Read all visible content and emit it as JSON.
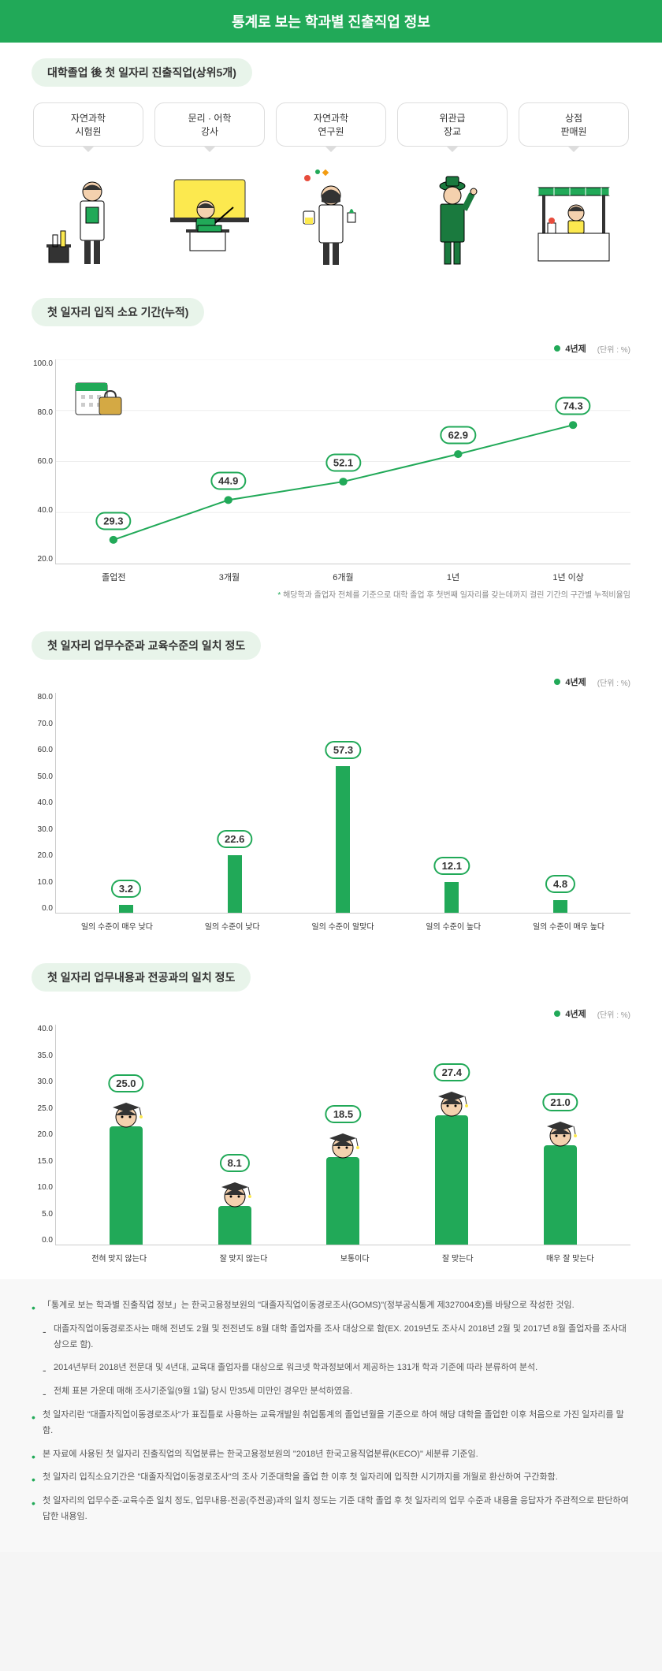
{
  "title": "통계로 보는 학과별 진출직업 정보",
  "section1": {
    "header": "대학졸업 後 첫 일자리 진출직업(상위5개)",
    "jobs": [
      {
        "label": "자연과학\n시험원"
      },
      {
        "label": "문리 · 어학\n강사"
      },
      {
        "label": "자연과학\n연구원"
      },
      {
        "label": "위관급\n장교"
      },
      {
        "label": "상점\n판매원"
      }
    ]
  },
  "section2": {
    "header": "첫 일자리 입직 소요 기간(누적)",
    "legend": "4년제",
    "unit": "(단위 : %)",
    "y_ticks": [
      "100.0",
      "80.0",
      "60.0",
      "40.0",
      "20.0"
    ],
    "y_min": 20,
    "y_max": 100,
    "x_labels": [
      "졸업전",
      "3개월",
      "6개월",
      "1년",
      "1년 이상"
    ],
    "values": [
      29.3,
      44.9,
      52.1,
      62.9,
      74.3
    ],
    "colors": {
      "line": "#21a958",
      "label_border": "#21a958"
    },
    "note": "해당학과 졸업자 전체를 기준으로 대학 졸업 후 첫번째 일자리를 갖는데까지 걸린 기간의 구간별 누적비율임"
  },
  "section3": {
    "header": "첫 일자리 업무수준과 교육수준의 일치 정도",
    "legend": "4년제",
    "unit": "(단위 : %)",
    "y_ticks": [
      "80.0",
      "70.0",
      "60.0",
      "50.0",
      "40.0",
      "30.0",
      "20.0",
      "10.0",
      "0.0"
    ],
    "y_max": 80,
    "x_labels": [
      "일의 수준이 매우 낮다",
      "일의 수준이 낮다",
      "일의 수준이 알맞다",
      "일의 수준이 높다",
      "일의 수준이 매우 높다"
    ],
    "values": [
      3.2,
      22.6,
      57.3,
      12.1,
      4.8
    ],
    "bar_color": "#21a958"
  },
  "section4": {
    "header": "첫 일자리 업무내용과 전공과의 일치 정도",
    "legend": "4년제",
    "unit": "(단위 : %)",
    "y_ticks": [
      "40.0",
      "35.0",
      "30.0",
      "25.0",
      "20.0",
      "15.0",
      "10.0",
      "5.0",
      "0.0"
    ],
    "y_max": 40,
    "x_labels": [
      "전혀 맞지 않는다",
      "잘 맞지 않는다",
      "보통이다",
      "잘 맞는다",
      "매우 잘 맞는다"
    ],
    "values": [
      25.0,
      8.1,
      18.5,
      27.4,
      21.0
    ],
    "bar_color": "#21a958"
  },
  "notes": {
    "items": [
      "「통계로 보는 학과별 진출직업 정보」는 한국고용정보원의 \"대졸자직업이동경로조사(GOMS)\"(정부공식통계 제327004호)를 바탕으로 작성한 것임.",
      "대졸자직업이동경로조사는 매해 전년도 2월 및 전전년도 8월 대학 졸업자를 조사 대상으로 함(EX. 2019년도 조사시 2018년 2월 및 2017년 8월 졸업자를 조사대상으로 함).",
      "2014년부터 2018년 전문대 및 4년대, 교육대 졸업자를 대상으로 워크넷 학과정보에서 제공하는 131개 학과 기준에 따라 분류하여 분석.",
      "전체 표본 가운데 매해 조사기준일(9월 1일) 당시 만35세 미만인 경우만 분석하였음.",
      "첫 일자리란 \"대졸자직업이동경로조사\"가 표집틀로 사용하는 교육개발원 취업통계의 졸업년월을 기준으로 하여 해당 대학을 졸업한 이후 처음으로 가진 일자리를 말함.",
      "본 자료에 사용된 첫 일자리 진출직업의 직업분류는 한국고용정보원의 \"2018년 한국고용직업분류(KECO)\" 세분류 기준임.",
      "첫 일자리 입직소요기간은 \"대졸자직업이동경로조사\"의 조사 기준대학을 졸업 한 이후 첫 일자리에 입직한 시기까지를 개월로 환산하여 구간화함.",
      "첫 일자리의 업무수준-교육수준 일치 정도, 업무내용-전공(주전공)과의 일치 정도는 기준 대학 졸업 후 첫 일자리의 업무 수준과 내용을 응답자가 주관적으로 판단하여 답한 내용임."
    ],
    "sub_indices": [
      1,
      2,
      3
    ]
  }
}
